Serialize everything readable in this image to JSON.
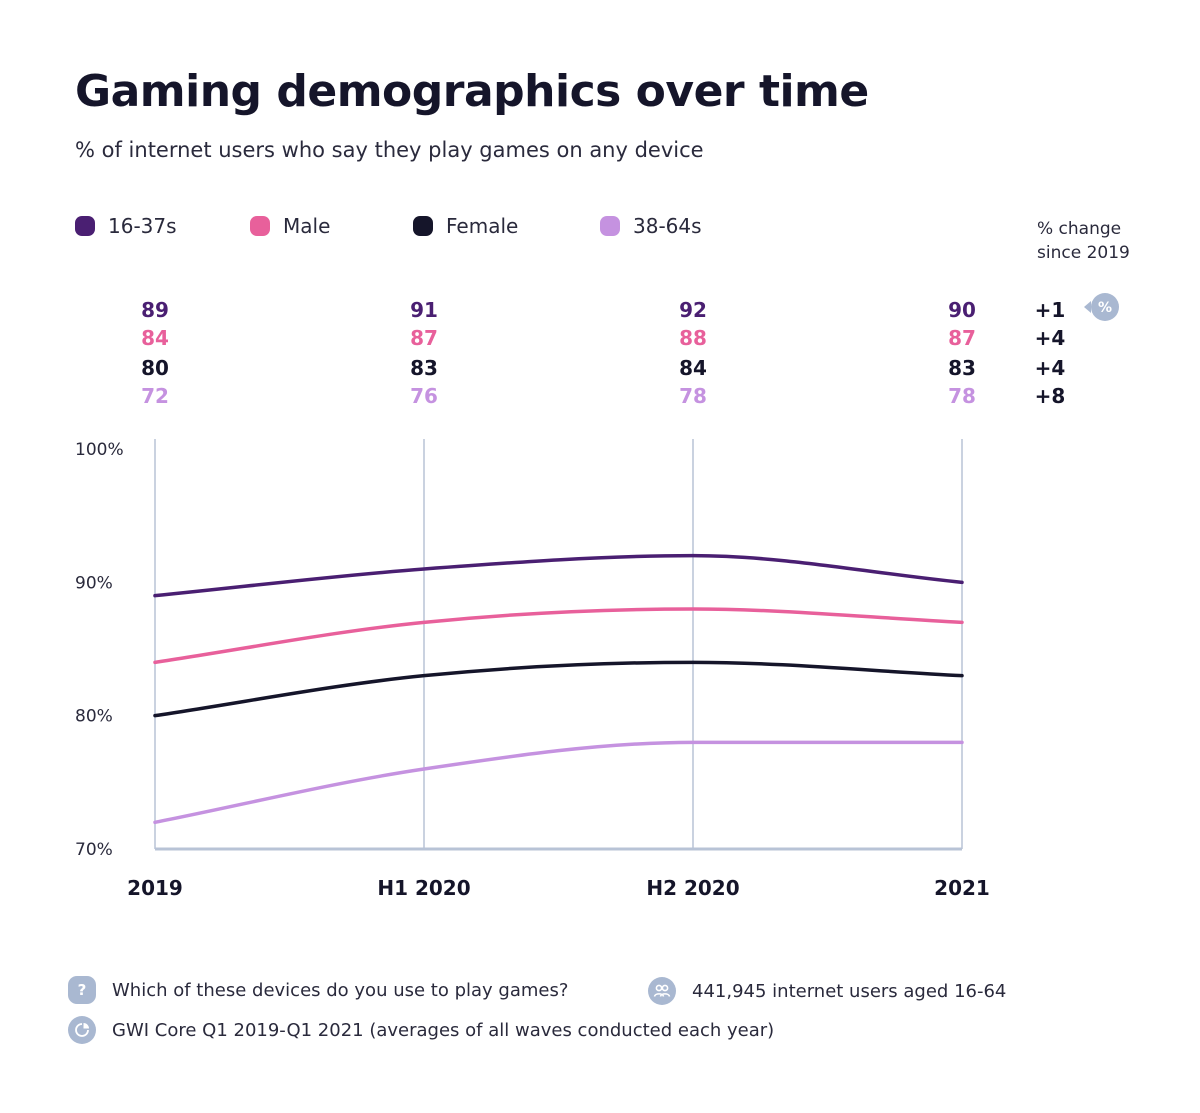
{
  "header": {
    "title": "Gaming demographics over time",
    "subtitle": "% of internet users who say they play games on any device"
  },
  "change_header": {
    "line1": "% change",
    "line2": "since 2019",
    "badge_symbol": "%"
  },
  "chart_data": {
    "type": "line",
    "title": "Gaming demographics over time",
    "subtitle": "% of internet users who say they play games on any device",
    "categories": [
      "2019",
      "H1 2020",
      "H2 2020",
      "2021"
    ],
    "ylim": [
      70,
      100
    ],
    "yticks": [
      100,
      90,
      80,
      70
    ],
    "ytick_labels": [
      "100%",
      "90%",
      "80%",
      "70%"
    ],
    "grid": "vertical",
    "legend_position": "top",
    "series": [
      {
        "name": "16-37s",
        "color": "#4a1f72",
        "values": [
          89,
          91,
          92,
          90
        ],
        "change": "+1"
      },
      {
        "name": "Male",
        "color": "#e8609b",
        "values": [
          84,
          87,
          88,
          87
        ],
        "change": "+4"
      },
      {
        "name": "Female",
        "color": "#15152a",
        "values": [
          80,
          83,
          84,
          83
        ],
        "change": "+4"
      },
      {
        "name": "38-64s",
        "color": "#c592e0",
        "values": [
          72,
          76,
          78,
          78
        ],
        "change": "+8"
      }
    ]
  },
  "footer": {
    "question": "Which of these devices do you use to play games?",
    "sample": "441,945 internet users aged 16-64",
    "source": "GWI Core Q1 2019-Q1 2021 (averages of all waves conducted each year)",
    "question_icon_symbol": "?"
  },
  "colors": {
    "grid": "#b8c3d6",
    "axis": "#b8c3d6",
    "icon_bg": "#a9b8d1"
  }
}
